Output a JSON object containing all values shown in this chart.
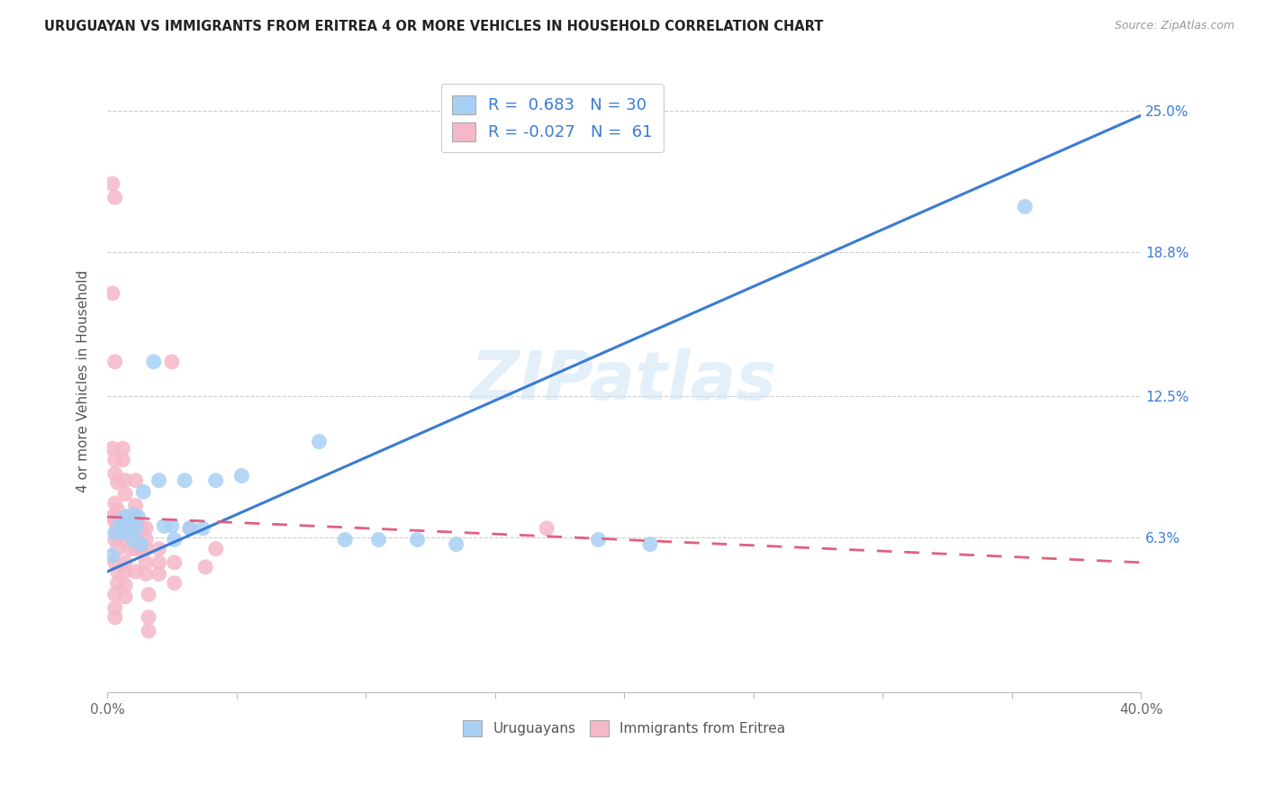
{
  "title": "URUGUAYAN VS IMMIGRANTS FROM ERITREA 4 OR MORE VEHICLES IN HOUSEHOLD CORRELATION CHART",
  "source": "Source: ZipAtlas.com",
  "ylabel": "4 or more Vehicles in Household",
  "xlim": [
    0.0,
    0.4
  ],
  "ylim": [
    -0.005,
    0.268
  ],
  "xtick_positions": [
    0.0,
    0.05,
    0.1,
    0.15,
    0.2,
    0.25,
    0.3,
    0.35,
    0.4
  ],
  "xtick_labels": [
    "0.0%",
    "",
    "",
    "",
    "",
    "",
    "",
    "",
    "40.0%"
  ],
  "ytick_labels_right": [
    "25.0%",
    "18.8%",
    "12.5%",
    "6.3%"
  ],
  "ytick_vals_right": [
    0.25,
    0.188,
    0.125,
    0.063
  ],
  "uruguayan_color": "#a8d0f5",
  "eritrea_color": "#f5b8c8",
  "line_uruguayan_color": "#3a7bd5",
  "line_eritrea_color": "#e06080",
  "watermark": "ZIPatlas",
  "uruguayan_trendline": [
    [
      0.0,
      0.048
    ],
    [
      0.4,
      0.248
    ]
  ],
  "eritrea_trendline": [
    [
      0.0,
      0.072
    ],
    [
      0.4,
      0.052
    ]
  ],
  "uruguayan_points": [
    [
      0.002,
      0.055
    ],
    [
      0.003,
      0.065
    ],
    [
      0.005,
      0.07
    ],
    [
      0.006,
      0.065
    ],
    [
      0.007,
      0.072
    ],
    [
      0.008,
      0.068
    ],
    [
      0.01,
      0.073
    ],
    [
      0.01,
      0.062
    ],
    [
      0.011,
      0.067
    ],
    [
      0.012,
      0.072
    ],
    [
      0.013,
      0.06
    ],
    [
      0.014,
      0.083
    ],
    [
      0.018,
      0.14
    ],
    [
      0.02,
      0.088
    ],
    [
      0.022,
      0.068
    ],
    [
      0.025,
      0.068
    ],
    [
      0.026,
      0.062
    ],
    [
      0.03,
      0.088
    ],
    [
      0.032,
      0.067
    ],
    [
      0.037,
      0.067
    ],
    [
      0.042,
      0.088
    ],
    [
      0.052,
      0.09
    ],
    [
      0.082,
      0.105
    ],
    [
      0.092,
      0.062
    ],
    [
      0.105,
      0.062
    ],
    [
      0.12,
      0.062
    ],
    [
      0.135,
      0.06
    ],
    [
      0.19,
      0.062
    ],
    [
      0.21,
      0.06
    ],
    [
      0.355,
      0.208
    ]
  ],
  "eritrea_points": [
    [
      0.002,
      0.218
    ],
    [
      0.003,
      0.212
    ],
    [
      0.002,
      0.17
    ],
    [
      0.003,
      0.14
    ],
    [
      0.002,
      0.102
    ],
    [
      0.003,
      0.097
    ],
    [
      0.003,
      0.091
    ],
    [
      0.004,
      0.087
    ],
    [
      0.003,
      0.078
    ],
    [
      0.004,
      0.075
    ],
    [
      0.002,
      0.072
    ],
    [
      0.003,
      0.07
    ],
    [
      0.004,
      0.067
    ],
    [
      0.004,
      0.064
    ],
    [
      0.003,
      0.062
    ],
    [
      0.004,
      0.058
    ],
    [
      0.003,
      0.052
    ],
    [
      0.004,
      0.048
    ],
    [
      0.004,
      0.043
    ],
    [
      0.003,
      0.038
    ],
    [
      0.003,
      0.032
    ],
    [
      0.003,
      0.028
    ],
    [
      0.006,
      0.102
    ],
    [
      0.006,
      0.097
    ],
    [
      0.007,
      0.088
    ],
    [
      0.007,
      0.082
    ],
    [
      0.007,
      0.072
    ],
    [
      0.007,
      0.067
    ],
    [
      0.007,
      0.062
    ],
    [
      0.007,
      0.052
    ],
    [
      0.007,
      0.048
    ],
    [
      0.007,
      0.042
    ],
    [
      0.007,
      0.037
    ],
    [
      0.009,
      0.058
    ],
    [
      0.009,
      0.067
    ],
    [
      0.011,
      0.088
    ],
    [
      0.011,
      0.077
    ],
    [
      0.011,
      0.072
    ],
    [
      0.011,
      0.067
    ],
    [
      0.011,
      0.062
    ],
    [
      0.011,
      0.058
    ],
    [
      0.011,
      0.048
    ],
    [
      0.013,
      0.067
    ],
    [
      0.013,
      0.058
    ],
    [
      0.015,
      0.067
    ],
    [
      0.015,
      0.062
    ],
    [
      0.015,
      0.058
    ],
    [
      0.015,
      0.052
    ],
    [
      0.015,
      0.047
    ],
    [
      0.016,
      0.038
    ],
    [
      0.016,
      0.028
    ],
    [
      0.016,
      0.022
    ],
    [
      0.02,
      0.058
    ],
    [
      0.02,
      0.052
    ],
    [
      0.02,
      0.047
    ],
    [
      0.025,
      0.14
    ],
    [
      0.026,
      0.052
    ],
    [
      0.026,
      0.043
    ],
    [
      0.032,
      0.067
    ],
    [
      0.038,
      0.05
    ],
    [
      0.042,
      0.058
    ],
    [
      0.17,
      0.067
    ]
  ]
}
